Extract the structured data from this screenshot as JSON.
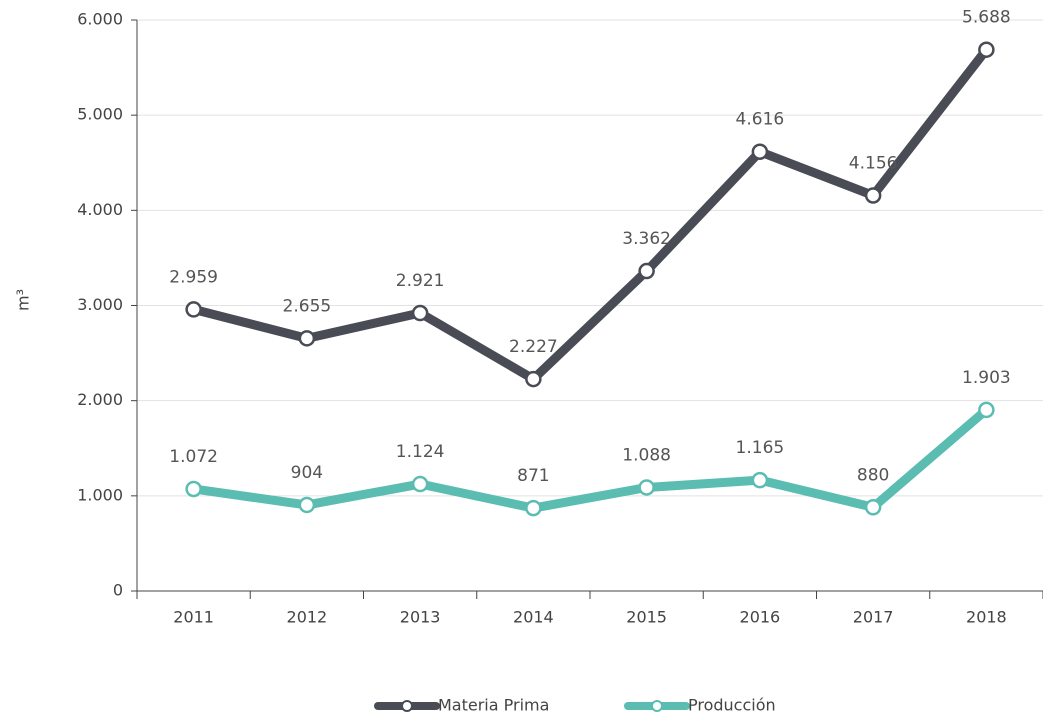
{
  "chart_data": {
    "type": "line",
    "y_label": "m³",
    "categories": [
      "2011",
      "2012",
      "2013",
      "2014",
      "2015",
      "2016",
      "2017",
      "2018"
    ],
    "series": [
      {
        "name": "Materia Prima",
        "color": "#4a4c55",
        "values": [
          2959,
          2655,
          2921,
          2227,
          3362,
          4616,
          4156,
          5688
        ],
        "value_labels": [
          "2.959",
          "2.655",
          "2.921",
          "2.227",
          "3.362",
          "4.616",
          "4.156",
          "5.688"
        ]
      },
      {
        "name": "Producción",
        "color": "#5bbdb1",
        "values": [
          1072,
          904,
          1124,
          871,
          1088,
          1165,
          880,
          1903
        ],
        "value_labels": [
          "1.072",
          "904",
          "1.124",
          "871",
          "1.088",
          "1.165",
          "880",
          "1.903"
        ]
      }
    ],
    "ylim": [
      0,
      6000
    ],
    "yticks": [
      0,
      {
        "value": 1000,
        "label": "1.000"
      },
      {
        "value": 2000,
        "label": "2.000"
      },
      {
        "value": 3000,
        "label": "3.000"
      },
      {
        "value": 4000,
        "label": "4.000"
      },
      {
        "value": 5000,
        "label": "5.000"
      },
      {
        "value": 6000,
        "label": "6.000"
      }
    ],
    "grid": true,
    "legend": "bottom"
  }
}
